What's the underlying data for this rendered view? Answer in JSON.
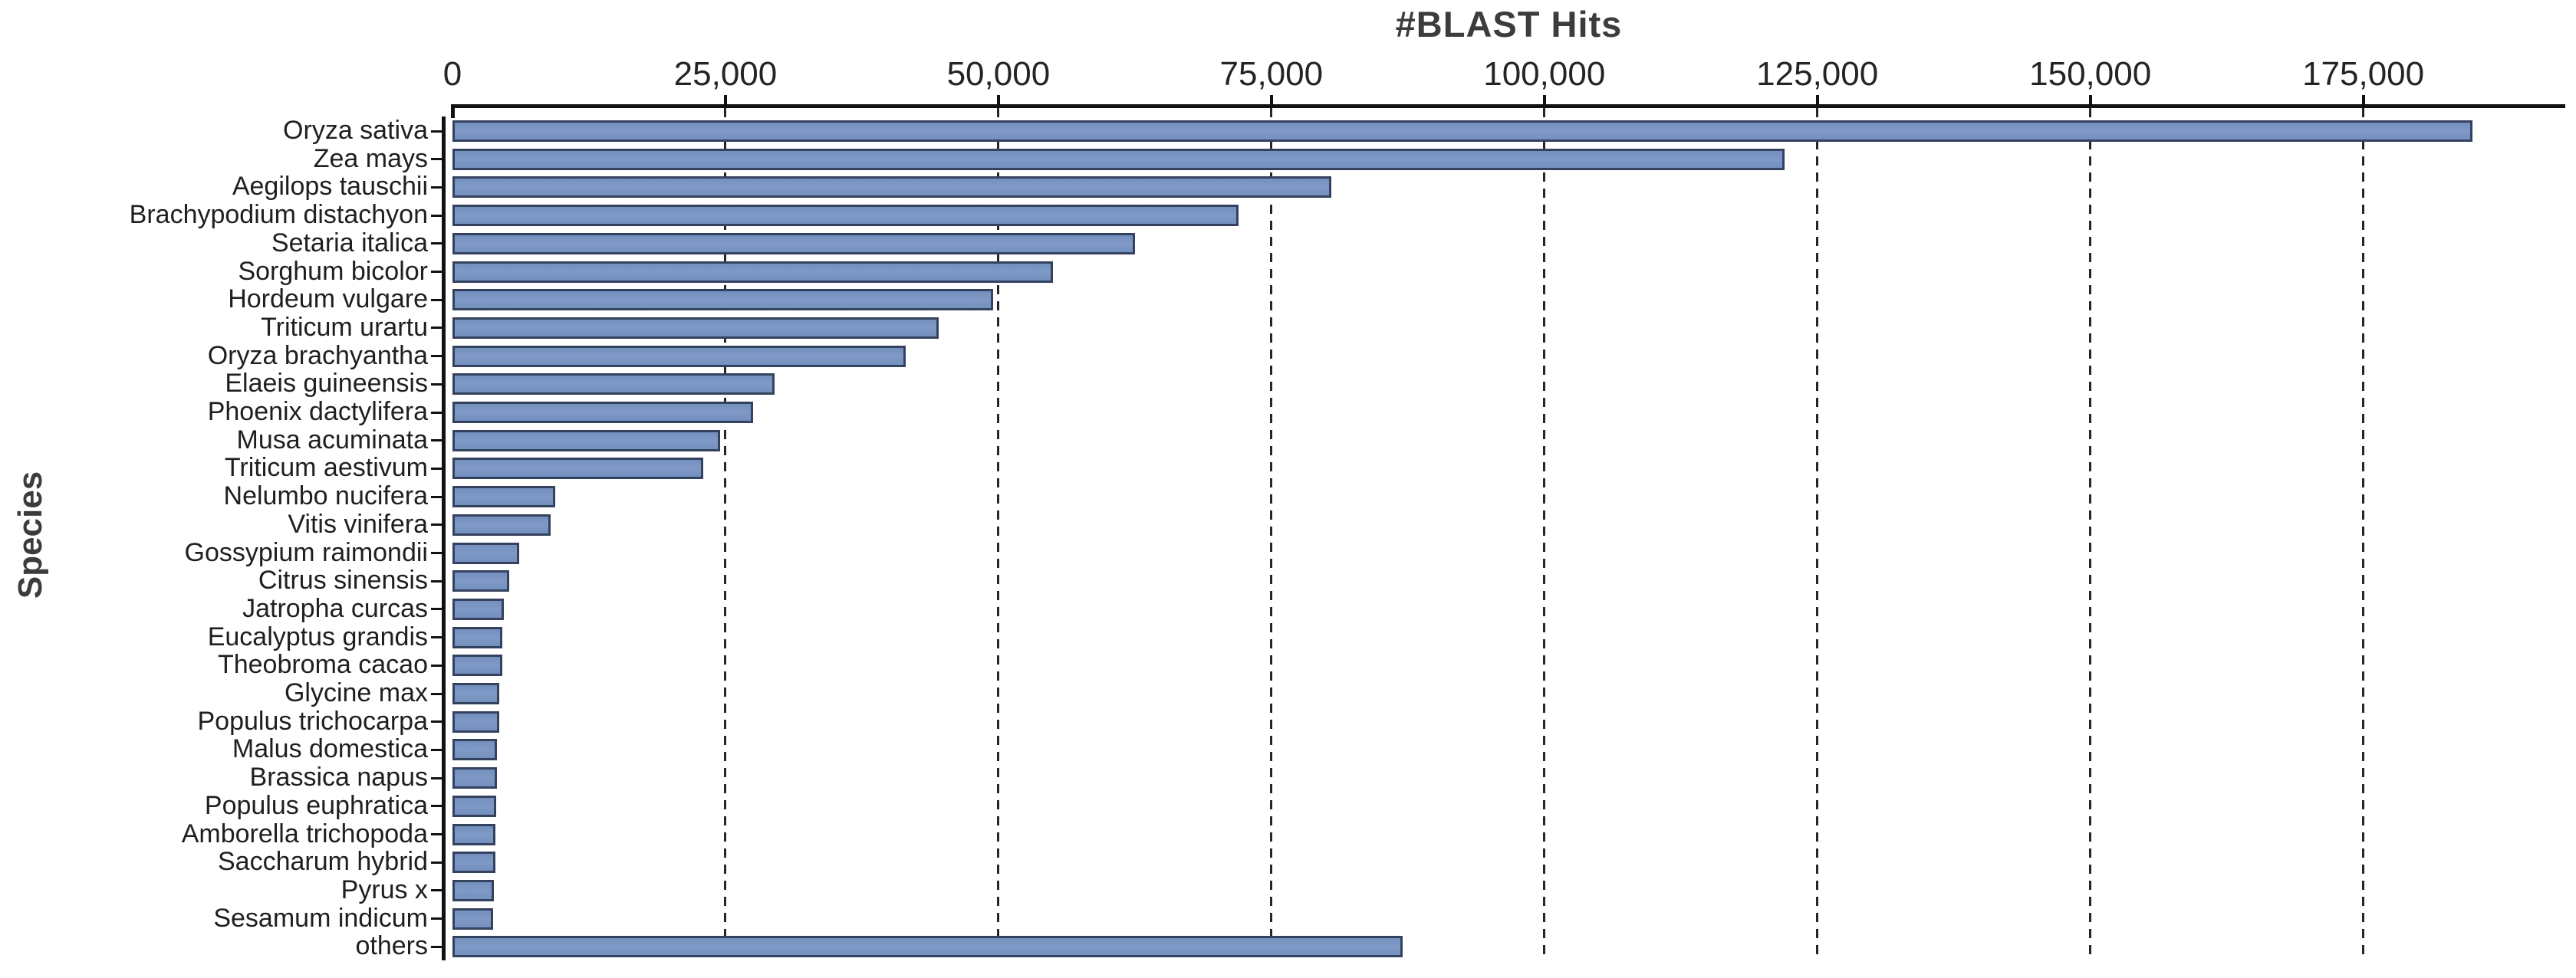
{
  "chart_data": {
    "type": "bar",
    "orientation": "horizontal",
    "title": "#BLAST Hits",
    "xlabel": "#BLAST Hits",
    "ylabel": "Species",
    "xlim": [
      0,
      193500
    ],
    "x_ticks": [
      0,
      25000,
      50000,
      75000,
      100000,
      125000,
      150000,
      175000
    ],
    "x_tick_labels": [
      "0",
      "25,000",
      "50,000",
      "75,000",
      "100,000",
      "125,000",
      "150,000",
      "175,000"
    ],
    "grid": "vertical-dashed-at-ticks",
    "legend_position": "none",
    "categories": [
      "Oryza sativa",
      "Zea mays",
      "Aegilops tauschii",
      "Brachypodium distachyon",
      "Setaria italica",
      "Sorghum bicolor",
      "Hordeum vulgare",
      "Triticum urartu",
      "Oryza brachyantha",
      "Elaeis guineensis",
      "Phoenix dactylifera",
      "Musa acuminata",
      "Triticum aestivum",
      "Nelumbo nucifera",
      "Vitis vinifera",
      "Gossypium raimondii",
      "Citrus sinensis",
      "Jatropha curcas",
      "Eucalyptus grandis",
      "Theobroma cacao",
      "Glycine max",
      "Populus trichocarpa",
      "Malus domestica",
      "Brassica napus",
      "Populus euphratica",
      "Amborella trichopoda",
      "Saccharum hybrid",
      "Pyrus x",
      "Sesamum indicum",
      "others"
    ],
    "values": [
      185000,
      122000,
      80500,
      72000,
      62500,
      55000,
      49500,
      44500,
      41500,
      29500,
      27500,
      24500,
      23000,
      9400,
      9000,
      6100,
      5200,
      4700,
      4600,
      4550,
      4300,
      4250,
      4100,
      4050,
      4000,
      3950,
      3900,
      3800,
      3700,
      87000
    ],
    "colors": {
      "bar_fill": "#7B94C1",
      "bar_fill_light": "#8099C6",
      "bar_border": "#34425F",
      "axis": "#111111",
      "grid": "#262626",
      "text": "#1F1F1F",
      "title_text": "#3C3C3C"
    }
  }
}
